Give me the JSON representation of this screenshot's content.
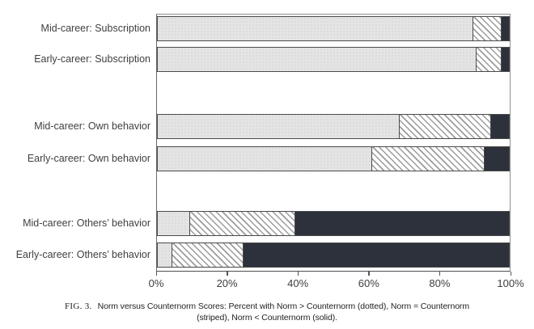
{
  "chart_data": {
    "type": "bar",
    "orientation": "horizontal",
    "stacked": true,
    "categories": [
      "Mid-career: Subscription",
      "Early-career: Subscription",
      "Mid-career: Own behavior",
      "Early-career: Own behavior",
      "Mid-career: Others’ behavior",
      "Early-career: Others’ behavior"
    ],
    "series": [
      {
        "name": "Norm > Counternorm (dotted)",
        "pattern": "dotted",
        "values": [
          90,
          91,
          69,
          61,
          9,
          4
        ]
      },
      {
        "name": "Norm = Counternorm (striped)",
        "pattern": "striped",
        "values": [
          8,
          7,
          26,
          32,
          30,
          20
        ]
      },
      {
        "name": "Norm < Counternorm (solid)",
        "pattern": "solid",
        "values": [
          2,
          2,
          5,
          7,
          61,
          76
        ]
      }
    ],
    "x_ticks": [
      "0%",
      "20%",
      "40%",
      "60%",
      "80%",
      "100%"
    ],
    "xlim": [
      0,
      100
    ],
    "grid": false,
    "legend_position": "none",
    "title": ""
  },
  "caption": {
    "prefix": "FIG. 3.",
    "line1": "Norm versus Counternorm Scores: Percent with Norm > Counternorm (dotted), Norm = Counternorm",
    "line2": "(striped), Norm < Counternorm (solid)."
  },
  "colors": {
    "dotted_fill": "#e4e4e4",
    "dot_color": "#c6c6c6",
    "stripe_line": "#9b9b9b",
    "solid_fill": "#2c313b",
    "segment_border": "#4a4a4a",
    "frame": "#8f8f8f",
    "axis": "#555555",
    "text": "#3f3f3f"
  }
}
